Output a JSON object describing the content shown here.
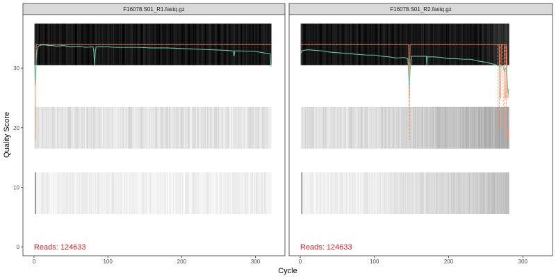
{
  "chart_data": {
    "type": "line",
    "xlabel": "Cycle",
    "ylabel": "Quality Score",
    "xlim": [
      -15,
      340
    ],
    "ylim": [
      -1.5,
      39
    ],
    "xticks": [
      0,
      100,
      200,
      300
    ],
    "yticks": [
      0,
      10,
      20,
      30
    ],
    "grid": false,
    "colors": {
      "mean_line": "#66c2a5",
      "quartile_lines": "#fc8d62",
      "reads_text": "#e31a1c",
      "strip_fill": "#d9d9d9",
      "heat_dark": "#000000"
    },
    "panels": [
      {
        "title": "F16078.S01_R1.fastq.gz",
        "reads_label": "Reads:  124633",
        "max_cycle": 321,
        "mean_quality": {
          "x": [
            1,
            2,
            3,
            4,
            5,
            6,
            8,
            10,
            15,
            20,
            25,
            30,
            40,
            50,
            60,
            70,
            80,
            81,
            82,
            83,
            84,
            85,
            90,
            100,
            110,
            120,
            140,
            160,
            180,
            200,
            220,
            240,
            260,
            270,
            271,
            272,
            280,
            300,
            310,
            320,
            321
          ],
          "y": [
            30.5,
            27.5,
            31.5,
            33.0,
            33.5,
            33.7,
            33.8,
            33.9,
            33.9,
            33.8,
            33.8,
            33.7,
            33.8,
            33.6,
            33.7,
            33.5,
            33.6,
            32.8,
            30.5,
            32.8,
            33.5,
            33.6,
            33.6,
            33.6,
            33.5,
            33.5,
            33.5,
            33.4,
            33.4,
            33.3,
            33.2,
            33.1,
            33.0,
            32.9,
            32.0,
            32.9,
            32.9,
            32.8,
            32.6,
            32.4,
            30.3
          ]
        },
        "median": {
          "x": [
            1,
            2,
            3,
            4,
            321
          ],
          "y": [
            30,
            27,
            34,
            34,
            34
          ]
        },
        "q25": {
          "x": [
            1,
            2,
            3,
            4,
            321
          ],
          "y": [
            30,
            18,
            34,
            34,
            34
          ]
        }
      },
      {
        "title": "F16078.S01_R2.fastq.gz",
        "reads_label": "Reads:  124633",
        "max_cycle": 281,
        "mean_quality": {
          "x": [
            1,
            2,
            5,
            10,
            20,
            30,
            40,
            50,
            60,
            70,
            80,
            90,
            100,
            110,
            120,
            130,
            140,
            145,
            146,
            147,
            148,
            150,
            160,
            170,
            170.5,
            171,
            180,
            190,
            200,
            210,
            220,
            230,
            240,
            250,
            260,
            265,
            270,
            273,
            275,
            278,
            279,
            280,
            281
          ],
          "y": [
            32.5,
            32.9,
            33.0,
            33.1,
            33.0,
            32.9,
            32.7,
            32.6,
            32.5,
            32.4,
            32.3,
            32.2,
            32.2,
            32.0,
            31.9,
            31.7,
            31.8,
            31.6,
            29.0,
            27.0,
            29.5,
            32.0,
            32.0,
            32.0,
            30.5,
            31.9,
            31.9,
            31.8,
            31.6,
            31.6,
            31.5,
            31.5,
            31.2,
            31.0,
            30.7,
            30.5,
            30.3,
            30.5,
            29.5,
            30.2,
            28.0,
            25.8,
            26.5
          ]
        },
        "median": {
          "x": [
            1,
            146,
            147,
            148,
            268,
            269,
            270,
            271,
            275,
            276,
            277,
            278,
            279,
            280,
            281
          ],
          "y": [
            34,
            34,
            25,
            34,
            34,
            25,
            25,
            34,
            34,
            25,
            25,
            34,
            25,
            25,
            26
          ]
        },
        "q25": {
          "x": [
            1,
            146,
            147,
            148,
            266,
            267,
            268,
            269,
            273,
            274,
            275,
            276,
            277,
            278,
            279,
            280,
            281
          ],
          "y": [
            34,
            34,
            18,
            34,
            34,
            20,
            20,
            34,
            34,
            20,
            20,
            34,
            34,
            18,
            20,
            18,
            20
          ]
        }
      }
    ]
  }
}
